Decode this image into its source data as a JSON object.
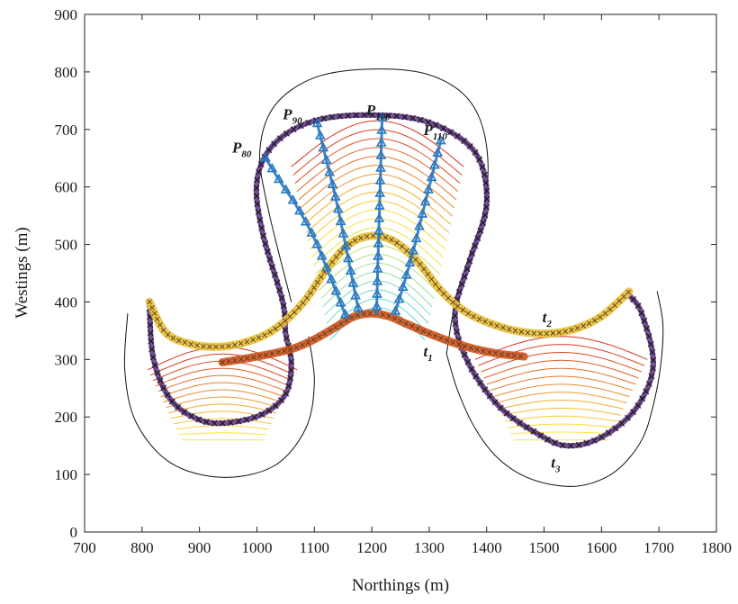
{
  "chart_data": {
    "type": "line",
    "xlabel": "Northings (m)",
    "ylabel": "Westings (m)",
    "xlim": [
      700,
      1800
    ],
    "ylim": [
      0,
      900
    ],
    "xticks": [
      700,
      800,
      900,
      1000,
      1100,
      1200,
      1300,
      1400,
      1500,
      1600,
      1700,
      1800
    ],
    "yticks": [
      0,
      100,
      200,
      300,
      400,
      500,
      600,
      700,
      800,
      900
    ],
    "grid": false,
    "colors": {
      "boundary": "#111111",
      "sensor_path": "#5a2d82",
      "sensor_marker": "#1a1a1a",
      "contour_low": "#d7301f",
      "contour_high": "#4fd7e6",
      "t1": "#d2551f",
      "t2": "#e8c23a",
      "p_paths": "#2878c0"
    },
    "series": [
      {
        "name": "t1",
        "label_main": "t",
        "label_sub": "1",
        "label_at": [
          1290,
          305
        ],
        "x": [
          940,
          1000,
          1060,
          1100,
          1140,
          1170,
          1200,
          1230,
          1260,
          1300,
          1340,
          1380,
          1420,
          1465
        ],
        "y": [
          295,
          305,
          318,
          335,
          358,
          375,
          380,
          375,
          362,
          345,
          330,
          318,
          310,
          305
        ]
      },
      {
        "name": "t2",
        "label_main": "t",
        "label_sub": "2",
        "label_at": [
          1497,
          365
        ],
        "x": [
          813,
          840,
          880,
          930,
          980,
          1030,
          1080,
          1120,
          1160,
          1200,
          1240,
          1280,
          1320,
          1360,
          1400,
          1450,
          1500,
          1550,
          1600,
          1648
        ],
        "y": [
          400,
          348,
          328,
          322,
          330,
          352,
          398,
          455,
          500,
          515,
          505,
          470,
          420,
          385,
          365,
          350,
          345,
          352,
          375,
          418
        ]
      },
      {
        "name": "t3",
        "label_main": "t",
        "label_sub": "3",
        "label_at": [
          1512,
          112
        ],
        "x": [
          1330,
          1350,
          1380,
          1420,
          1470,
          1530,
          1580,
          1630,
          1670,
          1690,
          1703,
          1707,
          1697
        ],
        "y": [
          310,
          245,
          180,
          128,
          95,
          80,
          84,
          110,
          160,
          220,
          290,
          360,
          418
        ],
        "style": "boundary"
      },
      {
        "name": "P80",
        "label_main": "P",
        "label_sub": "80",
        "label_at": [
          957,
          660
        ],
        "x": [
          1015,
          1040,
          1070,
          1100,
          1125,
          1145,
          1155
        ],
        "y": [
          650,
          610,
          565,
          510,
          450,
          400,
          375
        ]
      },
      {
        "name": "P90",
        "label_main": "P",
        "label_sub": "90",
        "label_at": [
          1045,
          718
        ],
        "x": [
          1105,
          1120,
          1135,
          1150,
          1162,
          1172,
          1178
        ],
        "y": [
          710,
          650,
          590,
          520,
          460,
          410,
          380
        ]
      },
      {
        "name": "P100",
        "label_main": "P",
        "label_sub": "100",
        "label_at": [
          1190,
          725
        ],
        "x": [
          1218,
          1216,
          1214,
          1212,
          1210,
          1209,
          1208
        ],
        "y": [
          720,
          650,
          580,
          510,
          450,
          405,
          380
        ]
      },
      {
        "name": "P110",
        "label_main": "P",
        "label_sub": "110",
        "label_at": [
          1290,
          690
        ],
        "x": [
          1320,
          1305,
          1290,
          1275,
          1260,
          1248,
          1240
        ],
        "y": [
          680,
          620,
          560,
          500,
          445,
          405,
          380
        ]
      }
    ]
  }
}
